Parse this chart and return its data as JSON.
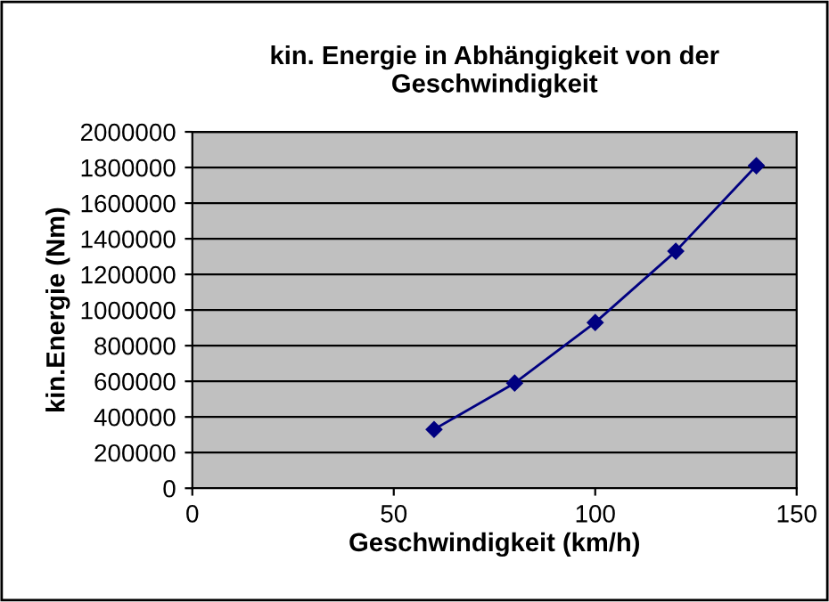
{
  "chart_data": {
    "type": "line",
    "title": "kin. Energie in Abhängigkeit von der\nGeschwindigkeit",
    "xlabel": "Geschwindigkeit (km/h)",
    "ylabel": "kin.Energie (Nm)",
    "x": [
      60,
      80,
      100,
      120,
      140
    ],
    "series": [
      {
        "color": "#000080",
        "values": [
          330000,
          590000,
          930000,
          1330000,
          1810000
        ]
      }
    ],
    "xlim": [
      0,
      150
    ],
    "xticks": [
      0,
      50,
      100,
      150
    ],
    "ylim": [
      0,
      2000000
    ],
    "yticks": [
      0,
      200000,
      400000,
      600000,
      800000,
      1000000,
      1200000,
      1400000,
      1600000,
      1800000,
      2000000
    ],
    "grid": "y",
    "marker": "diamond",
    "line_style": "solid",
    "legend": false
  }
}
